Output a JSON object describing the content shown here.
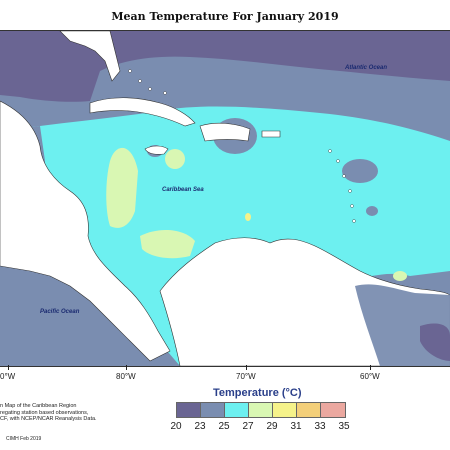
{
  "title": "Mean Temperature For January 2019",
  "map": {
    "labels": {
      "atlantic": "Atlantic Ocean",
      "caribbean": "Caribbean Sea",
      "pacific": "Pacific Ocean"
    },
    "longitude_ticks": [
      "0°W",
      "80°W",
      "70°W",
      "60°W"
    ]
  },
  "legend": {
    "title": "Temperature (°C)",
    "breaks": [
      "20",
      "23",
      "25",
      "27",
      "29",
      "31",
      "33",
      "35"
    ],
    "colors": [
      "#6a6593",
      "#7a8db0",
      "#6df0f0",
      "#d9f7b3",
      "#f5f28a",
      "#f3cf7a",
      "#eba8a0"
    ]
  },
  "notes": {
    "line1": "n Map of the Caribbean Region",
    "line2": "regating station based observations,",
    "line3": "CF, with NCEP/NCAR Reanalysis Data.",
    "credit": "CIMH Feb 2019"
  }
}
